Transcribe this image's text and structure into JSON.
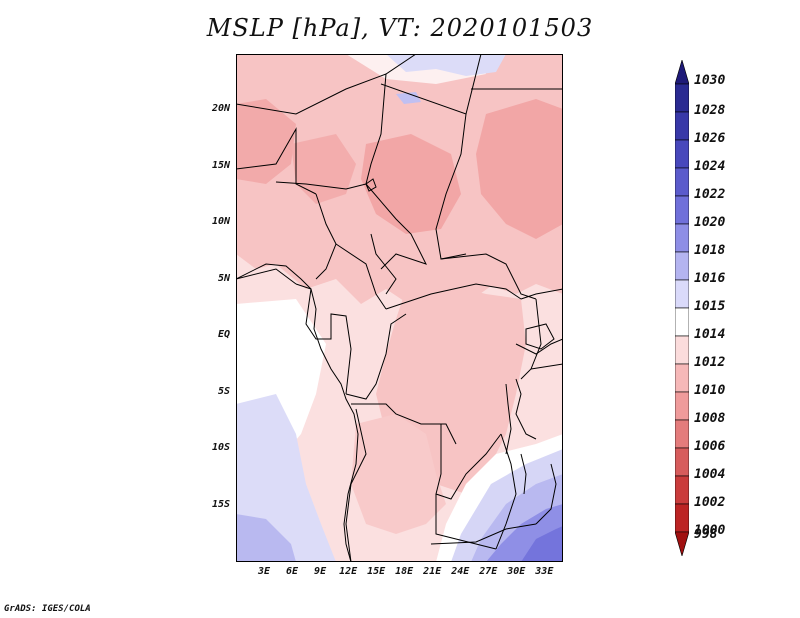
{
  "title": "MSLP [hPa], VT: 2020101503",
  "footer": "GrADS: IGES/COLA",
  "axes": {
    "lat_labels": [
      "20N",
      "15N",
      "10N",
      "5N",
      "EQ",
      "5S",
      "10S",
      "15S"
    ],
    "lon_labels": [
      "3E",
      "6E",
      "9E",
      "12E",
      "15E",
      "18E",
      "21E",
      "24E",
      "27E",
      "30E",
      "33E"
    ]
  },
  "legend": {
    "labels": [
      "1030",
      "1028",
      "1026",
      "1024",
      "1022",
      "1020",
      "1018",
      "1016",
      "1015",
      "1014",
      "1012",
      "1010",
      "1008",
      "1006",
      "1004",
      "1002",
      "1000",
      "998"
    ],
    "colors": [
      "#1e1a78",
      "#2a2a92",
      "#3838a8",
      "#4848bc",
      "#5b5bcc",
      "#7070da",
      "#8e8ee6",
      "#b4b4f0",
      "#dadafa",
      "#ffffff",
      "#fbdcdc",
      "#f6b8b8",
      "#ef9b9b",
      "#e47c7c",
      "#d75c5c",
      "#ca3c3c",
      "#bc2424",
      "#a01010"
    ]
  },
  "chart_data": {
    "type": "heatmap",
    "title": "MSLP [hPa], VT: 2020101503",
    "variable": "MSLP",
    "units": "hPa",
    "valid_time": "2020101503",
    "lon_range": [
      0,
      35
    ],
    "lat_range": [
      -20,
      25
    ],
    "levels": [
      998,
      1000,
      1002,
      1004,
      1006,
      1008,
      1010,
      1012,
      1014,
      1015,
      1016,
      1018,
      1020,
      1022,
      1024,
      1026,
      1028,
      1030
    ]
  }
}
